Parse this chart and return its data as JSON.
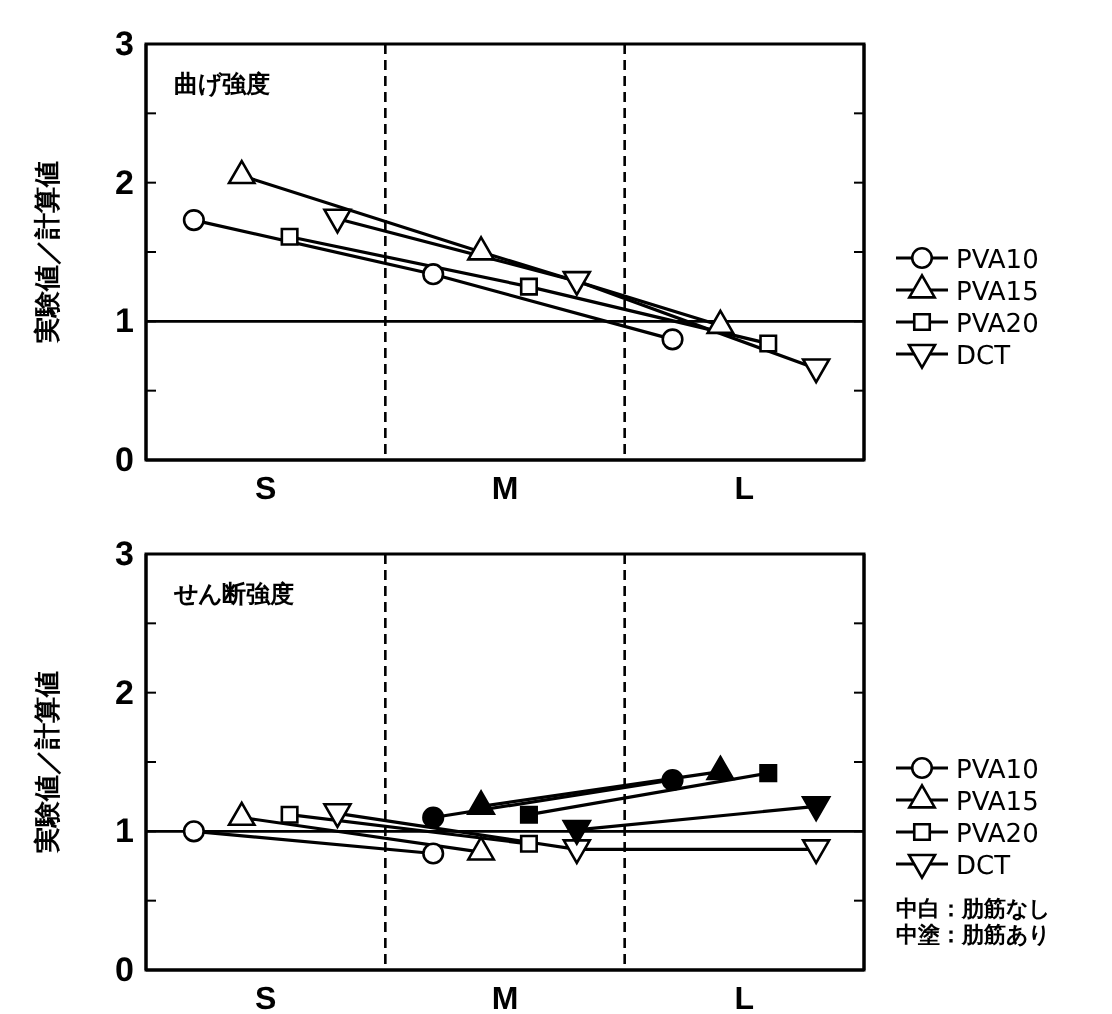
{
  "chart_data": [
    {
      "type": "line",
      "title": "曲げ強度",
      "ylabel": "実験値／計算値",
      "categories": [
        null,
        null,
        null,
        null,
        "S",
        null,
        null,
        null,
        null,
        null,
        null,
        null,
        null,
        null,
        "M",
        null,
        null,
        null,
        null,
        null,
        null,
        null,
        null,
        null,
        "L",
        null,
        null,
        null,
        null
      ],
      "ylim": [
        0,
        3
      ],
      "yticks": [
        0,
        {
          "value": 0.5,
          "label": null
        },
        1,
        {
          "value": 1.5,
          "label": null
        },
        2,
        {
          "value": 2.5,
          "label": null
        },
        3
      ],
      "legend": "right",
      "grid": "x",
      "ref_lines": [
        {
          "axis": "y",
          "value": 1,
          "label": null,
          "line_style": "solid",
          "color": "#000000"
        }
      ],
      "series": [
        {
          "name": "PVA10",
          "color": "#000000",
          "marker": "circle",
          "values": [
            null,
            1.73,
            null,
            null,
            null,
            null,
            null,
            null,
            null,
            null,
            null,
            1.34,
            null,
            null,
            null,
            null,
            null,
            null,
            null,
            null,
            null,
            0.87,
            null,
            null,
            null,
            null,
            null,
            null,
            null
          ]
        },
        {
          "name": "PVA15",
          "color": "#000000",
          "marker": "triangle",
          "values": [
            null,
            null,
            null,
            2.05,
            null,
            null,
            null,
            null,
            null,
            null,
            null,
            null,
            null,
            1.5,
            null,
            null,
            null,
            null,
            null,
            null,
            null,
            null,
            null,
            0.97,
            null,
            null,
            null,
            null,
            null
          ]
        },
        {
          "name": "PVA20",
          "color": "#000000",
          "marker": "square",
          "values": [
            null,
            null,
            null,
            null,
            null,
            1.61,
            null,
            null,
            null,
            null,
            null,
            null,
            null,
            null,
            null,
            1.25,
            null,
            null,
            null,
            null,
            null,
            null,
            null,
            null,
            null,
            0.84,
            null,
            null,
            null
          ]
        },
        {
          "name": "DCT",
          "color": "#000000",
          "marker": "triangle-down",
          "values": [
            null,
            null,
            null,
            null,
            null,
            null,
            null,
            1.74,
            null,
            null,
            null,
            null,
            null,
            null,
            null,
            null,
            null,
            1.29,
            null,
            null,
            null,
            null,
            null,
            null,
            null,
            null,
            null,
            0.66,
            null
          ]
        }
      ]
    },
    {
      "type": "line",
      "title": "せん断強度",
      "ylabel": "実験値／計算値",
      "categories": [
        null,
        null,
        null,
        null,
        "S",
        null,
        null,
        null,
        null,
        null,
        null,
        null,
        null,
        null,
        "M",
        null,
        null,
        null,
        null,
        null,
        null,
        null,
        null,
        null,
        "L",
        null,
        null,
        null,
        null
      ],
      "ylim": [
        0,
        3
      ],
      "yticks": [
        0,
        {
          "value": 0.5,
          "label": null
        },
        1,
        {
          "value": 1.5,
          "label": null
        },
        2,
        {
          "value": 2.5,
          "label": null
        },
        3
      ],
      "legend": "right",
      "grid": "x",
      "annotations": [
        "中白：肋筋なし",
        "中塗：肋筋あり"
      ],
      "ref_lines": [
        {
          "axis": "y",
          "value": 1,
          "label": null,
          "line_style": "solid",
          "color": "#000000"
        }
      ],
      "series": [
        {
          "name": "PVA10",
          "color": "#000000",
          "marker": "circle",
          "values": [
            null,
            1.0,
            null,
            null,
            null,
            null,
            null,
            null,
            null,
            null,
            null,
            0.84,
            null,
            null,
            null,
            null,
            null,
            null,
            null,
            null,
            null,
            null,
            null,
            null,
            null,
            null,
            null,
            null,
            null
          ]
        },
        {
          "name": "PVA15",
          "color": "#000000",
          "marker": "triangle",
          "values": [
            null,
            null,
            null,
            1.1,
            null,
            null,
            null,
            null,
            null,
            null,
            null,
            null,
            null,
            0.85,
            null,
            null,
            null,
            null,
            null,
            null,
            null,
            null,
            null,
            null,
            null,
            null,
            null,
            null,
            null
          ]
        },
        {
          "name": "PVA20",
          "color": "#000000",
          "marker": "square",
          "values": [
            null,
            null,
            null,
            null,
            null,
            1.12,
            null,
            null,
            null,
            null,
            null,
            null,
            null,
            null,
            null,
            0.91,
            null,
            null,
            null,
            null,
            null,
            null,
            null,
            null,
            null,
            null,
            null,
            null,
            null
          ]
        },
        {
          "name": "DCT",
          "color": "#000000",
          "marker": "triangle-down",
          "values": [
            null,
            null,
            null,
            null,
            null,
            null,
            null,
            1.13,
            null,
            null,
            null,
            null,
            null,
            null,
            null,
            null,
            null,
            0.87,
            null,
            null,
            null,
            null,
            null,
            null,
            null,
            null,
            null,
            0.87,
            null
          ]
        },
        {
          "color": "#000000",
          "marker": "circle",
          "values": [
            null,
            null,
            null,
            null,
            null,
            null,
            null,
            null,
            null,
            null,
            null,
            1.1,
            null,
            null,
            null,
            null,
            null,
            null,
            null,
            null,
            null,
            1.37,
            null,
            null,
            null,
            null,
            null,
            null,
            null
          ]
        },
        {
          "color": "#000000",
          "marker": "triangle",
          "values": [
            null,
            null,
            null,
            null,
            null,
            null,
            null,
            null,
            null,
            null,
            null,
            null,
            null,
            1.18,
            null,
            null,
            null,
            null,
            null,
            null,
            null,
            null,
            null,
            1.43,
            null,
            null,
            null,
            null,
            null
          ]
        },
        {
          "color": "#000000",
          "marker": "square",
          "values": [
            null,
            null,
            null,
            null,
            null,
            null,
            null,
            null,
            null,
            null,
            null,
            null,
            null,
            null,
            null,
            1.12,
            null,
            null,
            null,
            null,
            null,
            null,
            null,
            null,
            null,
            1.42,
            null,
            null,
            null
          ]
        },
        {
          "color": "#000000",
          "marker": "triangle-down",
          "values": [
            null,
            null,
            null,
            null,
            null,
            null,
            null,
            null,
            null,
            null,
            null,
            null,
            null,
            null,
            null,
            null,
            null,
            1.01,
            null,
            null,
            null,
            null,
            null,
            null,
            null,
            null,
            null,
            1.18,
            null
          ]
        }
      ]
    }
  ]
}
